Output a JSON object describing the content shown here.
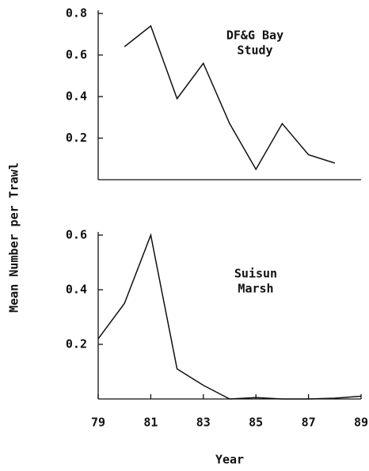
{
  "chart_data": [
    {
      "type": "line",
      "annotation": [
        "DF&G Bay",
        "Study"
      ],
      "y_label": "Mean Number per Trawl",
      "x": [
        80,
        81,
        82,
        83,
        84,
        85,
        86,
        87,
        88
      ],
      "values": [
        0.64,
        0.74,
        0.39,
        0.56,
        0.27,
        0.05,
        0.27,
        0.12,
        0.08
      ],
      "color": "#111111",
      "xlim": [
        79,
        89
      ],
      "ylim": [
        0,
        0.8
      ],
      "yticks": [
        0.2,
        0.4,
        0.6,
        0.8
      ]
    },
    {
      "type": "line",
      "annotation": [
        "Suisun",
        "Marsh"
      ],
      "x_label": "Year",
      "x": [
        79,
        80,
        81,
        82,
        83,
        84,
        85,
        86,
        87,
        88,
        89
      ],
      "values": [
        0.22,
        0.35,
        0.6,
        0.11,
        0.05,
        0,
        0.005,
        0,
        0,
        0.003,
        0.01
      ],
      "color": "#111111",
      "xlim": [
        79,
        89
      ],
      "ylim": [
        0,
        0.6
      ],
      "yticks": [
        0.2,
        0.4,
        0.6
      ],
      "xticks": [
        79,
        81,
        83,
        85,
        87,
        89
      ]
    }
  ]
}
